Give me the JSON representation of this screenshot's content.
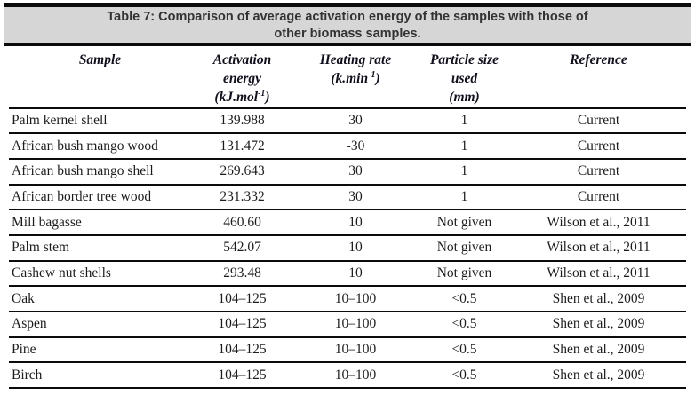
{
  "title": {
    "line1": "Table 7: Comparison of average activation energy of the samples with those of",
    "line2": "other biomass samples."
  },
  "colors": {
    "title_band_background": "#d6d6d6",
    "rule_color": "#0b0b0b",
    "title_text": "#333333",
    "body_text": "#1c1c1c"
  },
  "table": {
    "headers": {
      "sample": "Sample",
      "activation_line1": "Activation",
      "activation_line2": "energy",
      "activation_unit_pre": "(kJ.mol",
      "activation_unit_sup": "-1",
      "activation_unit_post": ")",
      "heating_line1": "Heating rate",
      "heating_unit_pre": "(k.min",
      "heating_unit_sup": "-1",
      "heating_unit_post": ")",
      "particle_line1": "Particle size",
      "particle_line2": "used",
      "particle_line3": "(mm)",
      "reference": "Reference"
    },
    "rows": [
      {
        "sample": "Palm kernel shell",
        "activation_energy": "139.988",
        "heating_rate": "30",
        "particle_size": "1",
        "reference": "Current"
      },
      {
        "sample": "African bush mango wood",
        "activation_energy": "131.472",
        "heating_rate": "-30",
        "particle_size": "1",
        "reference": "Current"
      },
      {
        "sample": "African bush mango shell",
        "activation_energy": "269.643",
        "heating_rate": "30",
        "particle_size": "1",
        "reference": "Current"
      },
      {
        "sample": "African border tree wood",
        "activation_energy": "231.332",
        "heating_rate": "30",
        "particle_size": "1",
        "reference": "Current"
      },
      {
        "sample": "Mill bagasse",
        "activation_energy": "460.60",
        "heating_rate": "10",
        "particle_size": "Not given",
        "reference": "Wilson et al., 2011"
      },
      {
        "sample": "Palm stem",
        "activation_energy": "542.07",
        "heating_rate": "10",
        "particle_size": "Not given",
        "reference": "Wilson et al., 2011"
      },
      {
        "sample": "Cashew nut shells",
        "activation_energy": "293.48",
        "heating_rate": "10",
        "particle_size": "Not given",
        "reference": "Wilson et al., 2011"
      },
      {
        "sample": "Oak",
        "activation_energy": "104–125",
        "heating_rate": "10–100",
        "particle_size": "<0.5",
        "reference": "Shen et al., 2009"
      },
      {
        "sample": "Aspen",
        "activation_energy": "104–125",
        "heating_rate": "10–100",
        "particle_size": "<0.5",
        "reference": "Shen et al., 2009"
      },
      {
        "sample": "Pine",
        "activation_energy": "104–125",
        "heating_rate": "10–100",
        "particle_size": "<0.5",
        "reference": "Shen et al., 2009"
      },
      {
        "sample": "Birch",
        "activation_energy": "104–125",
        "heating_rate": "10–100",
        "particle_size": "<0.5",
        "reference": "Shen et al., 2009"
      }
    ]
  }
}
